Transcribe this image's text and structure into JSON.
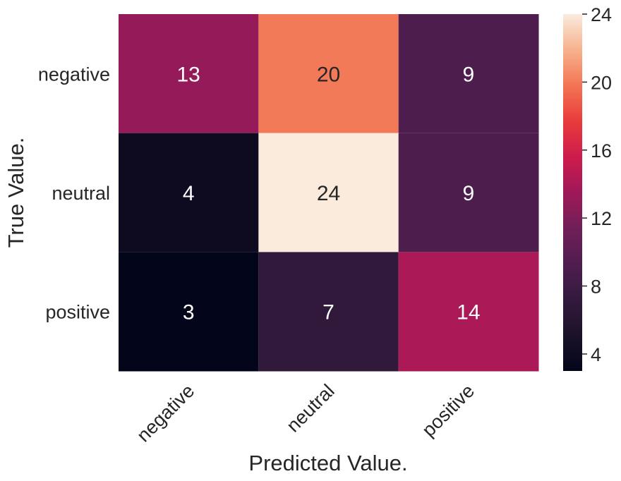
{
  "chart_data": {
    "type": "heatmap",
    "title": "",
    "xlabel": "Predicted Value.",
    "ylabel": "True Value.",
    "x_categories": [
      "negative",
      "neutral",
      "positive"
    ],
    "y_categories": [
      "negative",
      "neutral",
      "positive"
    ],
    "values": [
      [
        13,
        20,
        9
      ],
      [
        4,
        24,
        9
      ],
      [
        3,
        7,
        14
      ]
    ],
    "colormap": "rocket",
    "value_range": [
      3,
      24
    ],
    "colorbar_ticks": [
      4,
      8,
      12,
      16,
      20,
      24
    ],
    "annotation_colors": {
      "dark": "#262626",
      "light": "#ffffff"
    },
    "annotation_threshold": 17
  }
}
